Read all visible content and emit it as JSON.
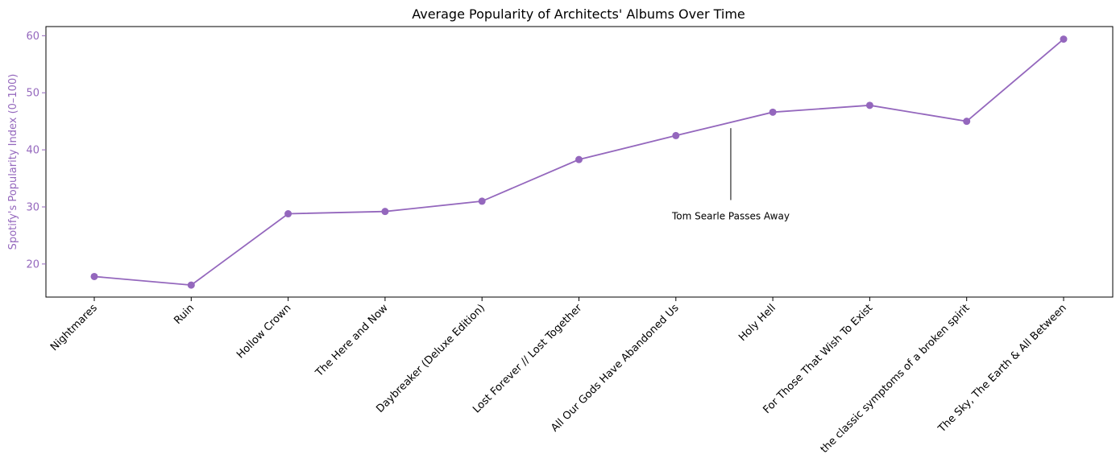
{
  "chart_data": {
    "type": "line",
    "title": "Average Popularity of Architects' Albums Over Time",
    "xlabel": "",
    "ylabel": "Spotify's Popularity Index (0–100)",
    "categories": [
      "Nightmares",
      "Ruin",
      "Hollow Crown",
      "The Here and Now",
      "Daybreaker (Deluxe Edition)",
      "Lost Forever // Lost Together",
      "All Our Gods Have Abandoned Us",
      "Holy Hell",
      "For Those That Wish To Exist",
      "the classic symptoms of a broken spirit",
      "The Sky, The Earth & All Between"
    ],
    "series": [
      {
        "values": [
          17.8,
          16.3,
          28.8,
          29.2,
          31.0,
          38.3,
          42.5,
          46.6,
          47.8,
          45.0,
          59.4
        ]
      }
    ],
    "ylim": [
      14.2,
      61.6
    ],
    "yticks": [
      20,
      30,
      40,
      50,
      60
    ],
    "grid": false,
    "color": "#9467bd",
    "annotations": [
      {
        "text": "Tom Searle Passes Away",
        "x_between": [
          6,
          7
        ],
        "y_top": 43.8,
        "y_bottom": 31.2
      }
    ]
  }
}
